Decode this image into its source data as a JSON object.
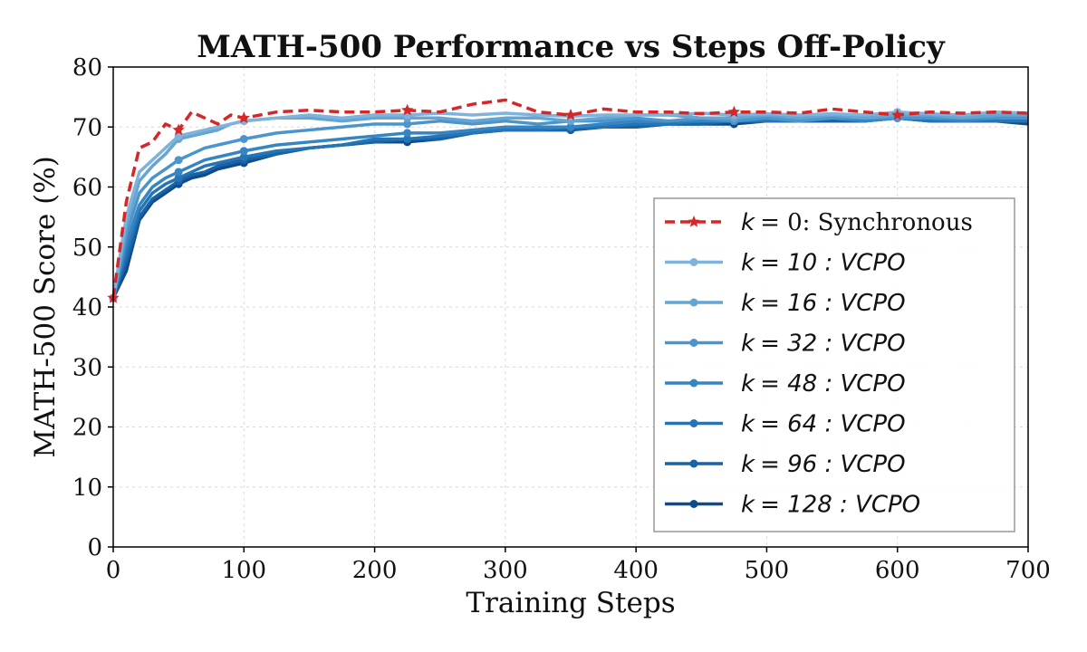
{
  "chart_data": {
    "type": "line",
    "title": "MATH-500 Performance vs Steps Off-Policy",
    "xlabel": "Training Steps",
    "ylabel": "MATH-500 Score (%)",
    "xlim": [
      0,
      700
    ],
    "ylim": [
      0,
      80
    ],
    "xticks": [
      "0",
      "100",
      "200",
      "300",
      "400",
      "500",
      "600",
      "700"
    ],
    "yticks": [
      "0",
      "10",
      "20",
      "30",
      "40",
      "50",
      "60",
      "70",
      "80"
    ],
    "grid": true,
    "legend_position": "center-right",
    "x": [
      0,
      10,
      20,
      30,
      40,
      50,
      60,
      70,
      80,
      90,
      100,
      125,
      150,
      175,
      200,
      225,
      250,
      275,
      300,
      325,
      350,
      375,
      400,
      425,
      450,
      475,
      500,
      525,
      550,
      575,
      600,
      625,
      650,
      675,
      700
    ],
    "series": [
      {
        "name": "k = 0: Synchronous",
        "label_prefix": "k",
        "label_suffix": "= 0: Synchronous",
        "color": "#d62728",
        "style": "dashed",
        "marker": "star",
        "values": [
          41.5,
          57.5,
          66.5,
          67.5,
          70.5,
          69.5,
          72.5,
          71.5,
          70.5,
          72,
          71.5,
          72.5,
          72.8,
          72.5,
          72.5,
          72.8,
          72.5,
          73.8,
          74.5,
          72.5,
          72,
          73,
          72.5,
          72.5,
          72.2,
          72.5,
          72.5,
          72.3,
          73,
          72.5,
          72,
          72.5,
          72.3,
          72.5,
          72.3
        ]
      },
      {
        "name": "k = 10 : VCPO",
        "label_prefix": "k",
        "label_suffix": "= 10 : VCPO",
        "color": "#7fb3dc",
        "style": "solid",
        "marker": "circle",
        "values": [
          41.5,
          55,
          62.5,
          64.5,
          66.5,
          68.5,
          69,
          69.5,
          70,
          70.5,
          71,
          71.5,
          72,
          71.5,
          72,
          72,
          72.3,
          72,
          72.3,
          72,
          71.8,
          72,
          72,
          72,
          72.3,
          72,
          72.2,
          72,
          72.2,
          72,
          72.5,
          72.2,
          72,
          72.5,
          72.3
        ]
      },
      {
        "name": "k = 16 : VCPO",
        "label_prefix": "k",
        "label_suffix": "= 16 : VCPO",
        "color": "#64a5d4",
        "style": "solid",
        "marker": "circle",
        "values": [
          41.5,
          53.5,
          61,
          63.5,
          65.5,
          68,
          68.5,
          69,
          69.5,
          70.5,
          71,
          71.5,
          71.5,
          71,
          71.5,
          71.5,
          71.5,
          71,
          71.5,
          71.5,
          71,
          71.5,
          72,
          72,
          71.5,
          71.5,
          72,
          71.5,
          72,
          71.5,
          72,
          72,
          71.5,
          72,
          72
        ]
      },
      {
        "name": "k = 32 : VCPO",
        "label_prefix": "k",
        "label_suffix": "= 32 : VCPO",
        "color": "#4b95cc",
        "style": "solid",
        "marker": "circle",
        "values": [
          41.5,
          52,
          59,
          61.5,
          63,
          64.5,
          65.5,
          66.5,
          67,
          67.5,
          68,
          69,
          69.5,
          70,
          70.5,
          70.5,
          71,
          70.5,
          71,
          70.5,
          71,
          71,
          71.5,
          71,
          71.5,
          71,
          71.5,
          71,
          71.5,
          71.5,
          71.5,
          71.5,
          71.5,
          71.5,
          71.5
        ]
      },
      {
        "name": "k = 48 : VCPO",
        "label_prefix": "k",
        "label_suffix": "= 48 : VCPO",
        "color": "#3585c2",
        "style": "solid",
        "marker": "circle",
        "values": [
          41.5,
          50.5,
          57,
          60,
          61.5,
          62.5,
          63.5,
          64.5,
          65,
          65.5,
          66,
          67,
          67.5,
          68,
          68.5,
          69,
          69,
          69.5,
          70,
          70,
          70,
          70.5,
          71,
          71,
          71,
          71,
          71.5,
          71,
          71.5,
          71,
          71.5,
          71.5,
          71,
          71.5,
          71.5
        ]
      },
      {
        "name": "k = 64 : VCPO",
        "label_prefix": "k",
        "label_suffix": "= 64 : VCPO",
        "color": "#2574b6",
        "style": "solid",
        "marker": "circle",
        "values": [
          41.5,
          49,
          56,
          59,
          60.5,
          61.5,
          62.5,
          63.5,
          64,
          64.5,
          65,
          66,
          66.5,
          67,
          68,
          68,
          68.5,
          69,
          69.5,
          69.5,
          70,
          70,
          70.5,
          70.5,
          71,
          71,
          71,
          71,
          71.5,
          71,
          71.5,
          71,
          71,
          71,
          71
        ]
      },
      {
        "name": "k = 96 : VCPO",
        "label_prefix": "k",
        "label_suffix": "= 96 : VCPO",
        "color": "#1763a6",
        "style": "solid",
        "marker": "circle",
        "values": [
          41.5,
          47.5,
          55,
          58,
          59.5,
          61,
          62,
          62.5,
          63.5,
          64,
          64.5,
          65.5,
          66.5,
          67,
          67.5,
          68,
          68,
          69,
          69.5,
          69.5,
          69.5,
          70,
          70,
          70.5,
          70.5,
          71,
          71,
          71,
          71,
          71,
          71.5,
          71,
          71,
          71,
          71
        ]
      },
      {
        "name": "k = 128 : VCPO",
        "label_prefix": "k",
        "label_suffix": "= 128 : VCPO",
        "color": "#0d4a8e",
        "style": "solid",
        "marker": "circle",
        "values": [
          41.5,
          46,
          54.5,
          57.5,
          59,
          60.5,
          61.5,
          62,
          63,
          63.5,
          64,
          65.5,
          66.5,
          67,
          67.5,
          67.5,
          68,
          69,
          69.5,
          69.5,
          69.5,
          70,
          70,
          70.5,
          70.5,
          70.5,
          71,
          71,
          71,
          71,
          71.5,
          71,
          71,
          71,
          70.5
        ]
      }
    ]
  }
}
